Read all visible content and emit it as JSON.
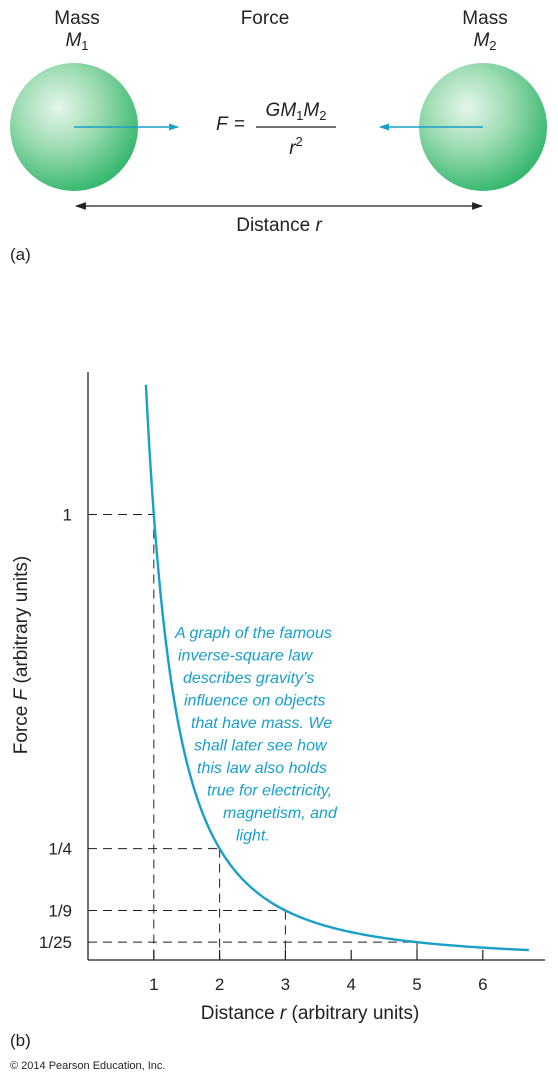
{
  "panel_a": {
    "mass1": {
      "title": "Mass",
      "symbol": "M",
      "subscript": "1"
    },
    "mass2": {
      "title": "Mass",
      "symbol": "M",
      "subscript": "2"
    },
    "force_title": "Force",
    "formula": {
      "lhs": "F",
      "equals": "=",
      "num_g": "GM",
      "num_sub1": "1",
      "num_m": "M",
      "num_sub2": "2",
      "den_r": "r",
      "den_exp": "2"
    },
    "distance_label": {
      "text": "Distance",
      "symbol": "r"
    },
    "panel_tag": "(a)",
    "sphere_color": "#5cc98a",
    "arrow_color": "#1a9fc8"
  },
  "chart_data": {
    "type": "line",
    "panel_tag": "(b)",
    "xlabel": {
      "text": "Distance",
      "symbol": "r",
      "suffix": "(arbitrary units)"
    },
    "ylabel": {
      "text": "Force",
      "symbol": "F",
      "suffix": "(arbitrary units)"
    },
    "xticks": [
      {
        "value": 1,
        "label": "1"
      },
      {
        "value": 2,
        "label": "2"
      },
      {
        "value": 3,
        "label": "3"
      },
      {
        "value": 4,
        "label": "4"
      },
      {
        "value": 5,
        "label": "5"
      },
      {
        "value": 6,
        "label": "6"
      }
    ],
    "yticks": [
      {
        "value": 1,
        "label": "1"
      },
      {
        "value": 0.25,
        "label": "1/4"
      },
      {
        "value": 0.1111,
        "label": "1/9"
      },
      {
        "value": 0.04,
        "label": "1/25"
      }
    ],
    "xlim": [
      0,
      7
    ],
    "ylim": [
      0,
      1.32
    ],
    "series": [
      {
        "function": "1/r^2",
        "x_range": [
          0.88,
          6.7
        ],
        "color": "#1a9fc8"
      }
    ],
    "guide_points": [
      {
        "x": 1,
        "y": 1
      },
      {
        "x": 2,
        "y": 0.25
      },
      {
        "x": 3,
        "y": 0.1111
      },
      {
        "x": 5,
        "y": 0.04
      }
    ],
    "annotation": [
      "A graph of the famous",
      "inverse-square law",
      "describes gravity’s",
      "influence on objects",
      "that have mass. We",
      "shall later see how",
      "this law also holds",
      "true for electricity,",
      "magnetism, and",
      "light."
    ],
    "grid": false
  },
  "copyright": "© 2014 Pearson Education, Inc."
}
